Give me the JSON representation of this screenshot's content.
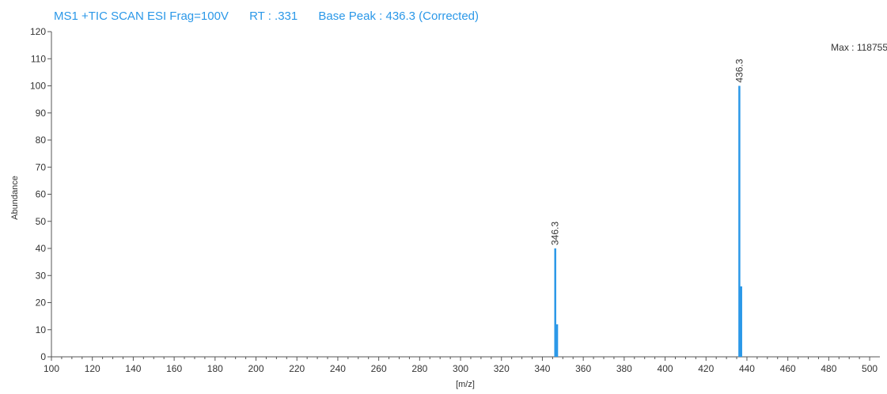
{
  "colors": {
    "accent": "#2b98e8",
    "axis": "#555555",
    "text": "#333333"
  },
  "chart_data": {
    "type": "bar",
    "title_parts": [
      "MS1 +TIC SCAN ESI Frag=100V",
      "RT : .331",
      "Base Peak : 436.3 (Corrected)"
    ],
    "max_label": "Max : 118755",
    "xlabel": "[m/z]",
    "ylabel": "Abundance",
    "xlim": [
      100,
      505
    ],
    "ylim": [
      0,
      120
    ],
    "xticks": [
      100,
      120,
      140,
      160,
      180,
      200,
      220,
      240,
      260,
      280,
      300,
      320,
      340,
      360,
      380,
      400,
      420,
      440,
      460,
      480,
      500
    ],
    "yticks": [
      0,
      10,
      20,
      30,
      40,
      50,
      60,
      70,
      80,
      90,
      100,
      110,
      120
    ],
    "grid": false,
    "peaks": [
      {
        "x": 346.3,
        "y": 40,
        "label": "346.3"
      },
      {
        "x": 347.2,
        "y": 12,
        "label": ""
      },
      {
        "x": 436.3,
        "y": 100,
        "label": "436.3"
      },
      {
        "x": 437.2,
        "y": 26,
        "label": ""
      }
    ]
  }
}
